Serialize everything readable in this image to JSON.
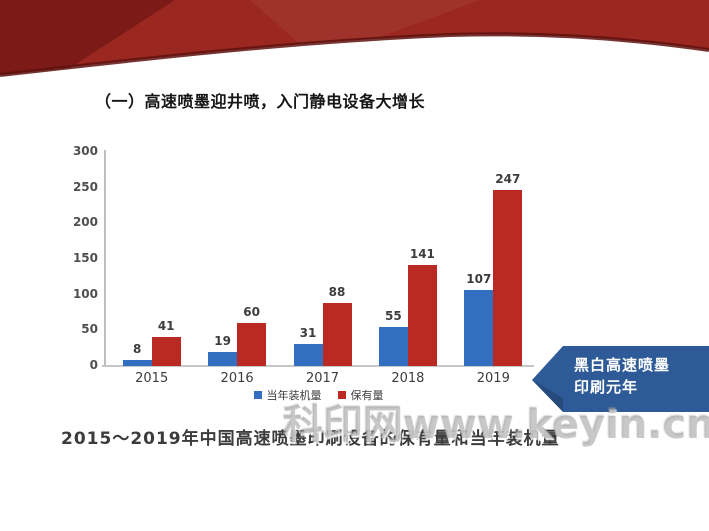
{
  "slide": {
    "title": "（一）高速喷墨迎井喷，入门静电设备大增长",
    "caption": "2015～2019年中国高速喷墨印刷设备的保有量和当年装机量",
    "watermark": "科印网www.keyin.cn"
  },
  "ribbon": {
    "color_main": "#9b2721",
    "color_dark": "#701713",
    "color_edge": "#5e120e"
  },
  "banner": {
    "lines": [
      "黑白高速喷墨",
      "印刷元年"
    ],
    "bg_color": "#2e5b97",
    "text_color": "#ffffff"
  },
  "chart_data": {
    "type": "bar",
    "title": "",
    "categories": [
      "2015",
      "2016",
      "2017",
      "2018",
      "2019"
    ],
    "series": [
      {
        "name": "当年装机量",
        "color": "#326fc0",
        "values": [
          8,
          19,
          31,
          55,
          107
        ]
      },
      {
        "name": "保有量",
        "color": "#bb2a22",
        "values": [
          41,
          60,
          88,
          141,
          247
        ]
      }
    ],
    "xlabel": "",
    "ylabel": "",
    "ylim": [
      0,
      300
    ],
    "yticks": [
      0,
      50,
      100,
      150,
      200,
      250,
      300
    ],
    "grid": false,
    "legend_position": "bottom"
  }
}
